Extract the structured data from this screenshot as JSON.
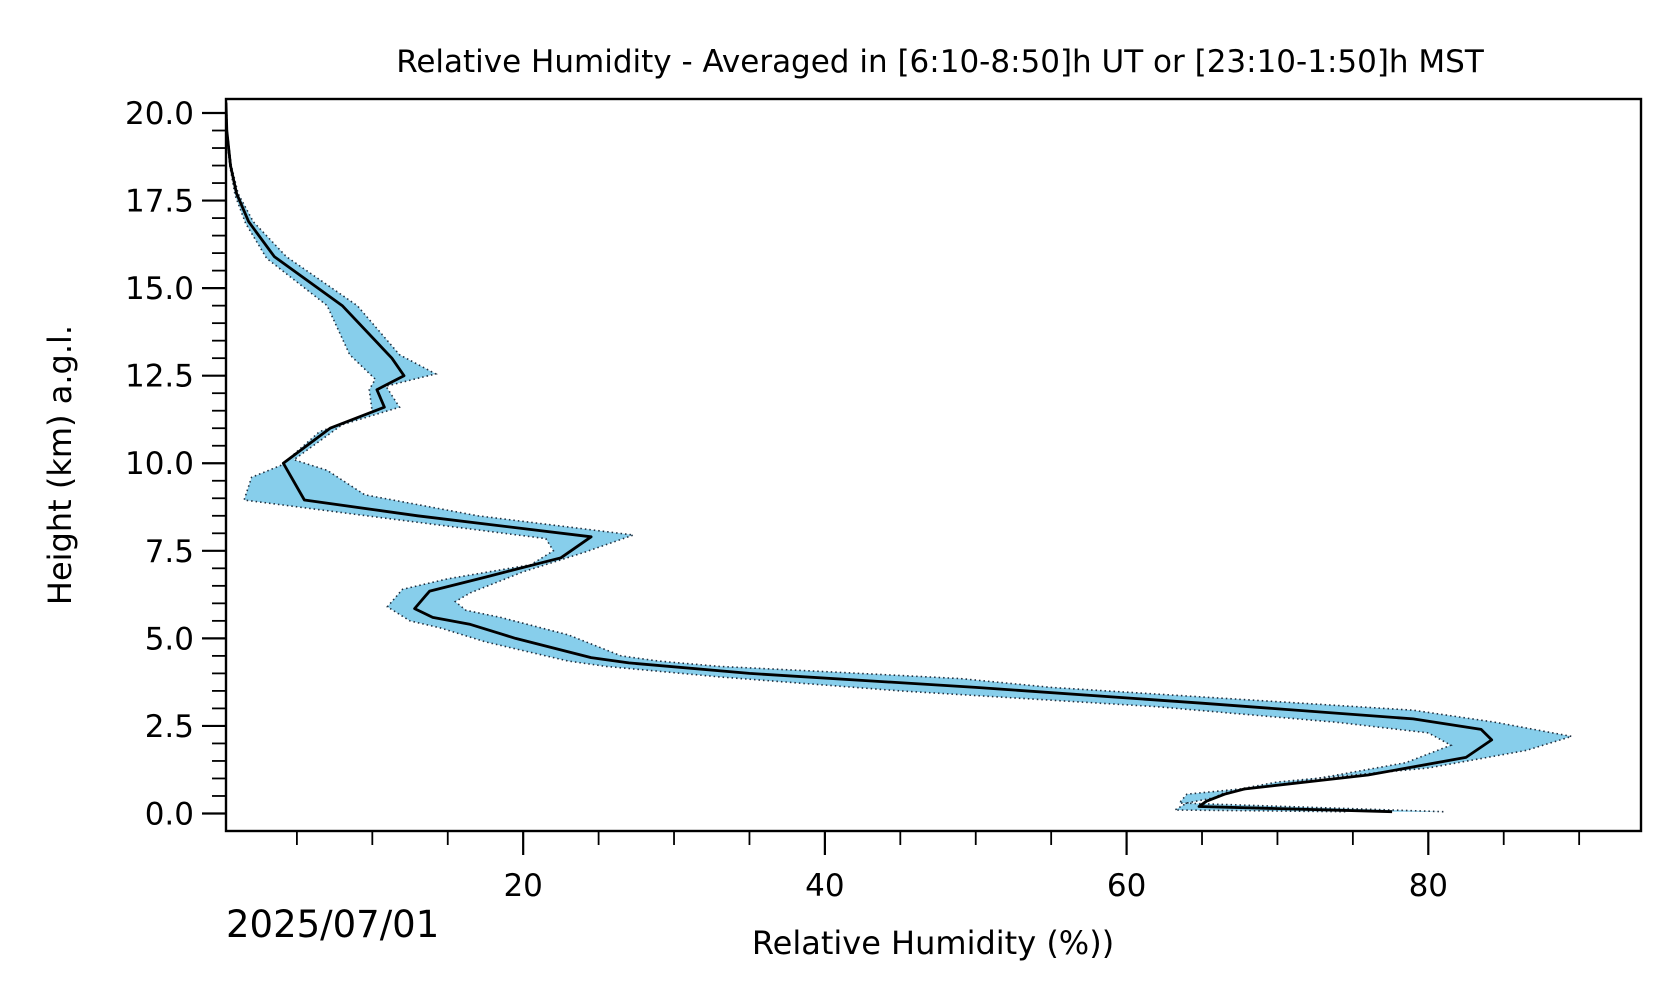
{
  "chart_data": {
    "type": "line",
    "title": "Relative Humidity - Averaged in [6:10-8:50]h UT or [23:10-1:50]h MST",
    "xlabel": "Relative Humidity (%))",
    "ylabel": "Height (km) a.g.l.",
    "date": "2025/07/01",
    "xlim": [
      0.3,
      94.1
    ],
    "ylim": [
      -0.5,
      20.4
    ],
    "x_major_ticks": [
      20,
      40,
      60,
      80
    ],
    "x_tick_labels": [
      "20",
      "40",
      "60",
      "80"
    ],
    "x_minor_ticks": [
      5,
      10,
      15,
      25,
      30,
      35,
      45,
      50,
      55,
      65,
      70,
      75,
      85,
      90
    ],
    "y_major_ticks": [
      0,
      2.5,
      5,
      7.5,
      10,
      12.5,
      15,
      17.5,
      20
    ],
    "y_tick_labels": [
      "0.0",
      "2.5",
      "5.0",
      "7.5",
      "10.0",
      "12.5",
      "15.0",
      "17.5",
      "20.0"
    ],
    "colors": {
      "band": "#87ceeb",
      "line": "#000000",
      "band_edge": "#1f2f3f"
    },
    "series": [
      {
        "role": "mean",
        "points": [
          [
            77.6,
            0.05
          ],
          [
            64.8,
            0.2
          ],
          [
            65.3,
            0.35
          ],
          [
            66.5,
            0.55
          ],
          [
            67.8,
            0.7
          ],
          [
            76.0,
            1.1
          ],
          [
            82.5,
            1.6
          ],
          [
            84.2,
            2.1
          ],
          [
            83.5,
            2.4
          ],
          [
            79.0,
            2.7
          ],
          [
            65.0,
            3.15
          ],
          [
            50.0,
            3.6
          ],
          [
            35.0,
            4.0
          ],
          [
            27.0,
            4.3
          ],
          [
            24.5,
            4.45
          ],
          [
            19.5,
            5.0
          ],
          [
            16.5,
            5.4
          ],
          [
            14.0,
            5.6
          ],
          [
            12.8,
            5.85
          ],
          [
            13.5,
            6.2
          ],
          [
            13.8,
            6.35
          ],
          [
            17.5,
            6.75
          ],
          [
            22.5,
            7.3
          ],
          [
            24.5,
            7.9
          ],
          [
            13.0,
            8.5
          ],
          [
            5.5,
            8.95
          ],
          [
            4.1,
            10.0
          ],
          [
            7.2,
            11.0
          ],
          [
            10.8,
            11.6
          ],
          [
            10.3,
            12.1
          ],
          [
            12.1,
            12.5
          ],
          [
            11.3,
            13.0
          ],
          [
            8.0,
            14.5
          ],
          [
            3.5,
            15.9
          ],
          [
            1.8,
            16.9
          ],
          [
            1.0,
            17.7
          ],
          [
            0.6,
            18.5
          ],
          [
            0.35,
            19.5
          ],
          [
            0.3,
            20.3
          ]
        ]
      },
      {
        "role": "upper",
        "points": [
          [
            81.0,
            0.05
          ],
          [
            63.5,
            0.3
          ],
          [
            64.0,
            0.55
          ],
          [
            67.5,
            0.7
          ],
          [
            70.0,
            0.9
          ],
          [
            80.0,
            1.3
          ],
          [
            86.5,
            1.8
          ],
          [
            89.5,
            2.2
          ],
          [
            84.5,
            2.6
          ],
          [
            79.0,
            2.95
          ],
          [
            66.0,
            3.3
          ],
          [
            55.0,
            3.6
          ],
          [
            49.0,
            3.85
          ],
          [
            40.0,
            4.05
          ],
          [
            33.0,
            4.2
          ],
          [
            29.0,
            4.35
          ],
          [
            26.5,
            4.5
          ],
          [
            23.0,
            5.1
          ],
          [
            18.5,
            5.6
          ],
          [
            16.2,
            5.8
          ],
          [
            15.5,
            6.05
          ],
          [
            16.5,
            6.3
          ],
          [
            20.0,
            6.9
          ],
          [
            24.0,
            7.45
          ],
          [
            27.3,
            7.95
          ],
          [
            17.0,
            8.5
          ],
          [
            9.5,
            9.1
          ],
          [
            7.0,
            9.8
          ],
          [
            4.8,
            10.1
          ],
          [
            8.0,
            11.1
          ],
          [
            11.8,
            11.6
          ],
          [
            10.9,
            12.2
          ],
          [
            14.2,
            12.55
          ],
          [
            11.8,
            13.1
          ],
          [
            9.0,
            14.5
          ],
          [
            4.3,
            15.9
          ],
          [
            2.1,
            16.9
          ],
          [
            1.1,
            17.7
          ],
          [
            0.65,
            18.5
          ],
          [
            0.38,
            19.5
          ],
          [
            0.33,
            20.3
          ]
        ]
      },
      {
        "role": "lower",
        "points": [
          [
            74.5,
            0.05
          ],
          [
            63.2,
            0.1
          ],
          [
            64.0,
            0.3
          ],
          [
            65.8,
            0.45
          ],
          [
            66.5,
            0.6
          ],
          [
            72.0,
            0.95
          ],
          [
            78.5,
            1.45
          ],
          [
            81.5,
            1.95
          ],
          [
            80.0,
            2.3
          ],
          [
            74.0,
            2.6
          ],
          [
            62.0,
            3.05
          ],
          [
            45.0,
            3.5
          ],
          [
            33.0,
            3.9
          ],
          [
            25.5,
            4.2
          ],
          [
            23.0,
            4.35
          ],
          [
            17.5,
            4.9
          ],
          [
            14.5,
            5.3
          ],
          [
            12.5,
            5.5
          ],
          [
            11.0,
            5.9
          ],
          [
            12.0,
            6.4
          ],
          [
            15.0,
            6.7
          ],
          [
            20.5,
            7.1
          ],
          [
            22.0,
            7.5
          ],
          [
            21.5,
            7.85
          ],
          [
            10.5,
            8.45
          ],
          [
            1.5,
            8.95
          ],
          [
            2.0,
            9.6
          ],
          [
            4.0,
            9.95
          ],
          [
            6.5,
            10.9
          ],
          [
            10.0,
            11.45
          ],
          [
            9.8,
            12.1
          ],
          [
            10.2,
            12.4
          ],
          [
            8.5,
            13.1
          ],
          [
            7.0,
            14.5
          ],
          [
            3.0,
            15.85
          ],
          [
            1.6,
            16.85
          ],
          [
            0.9,
            17.65
          ],
          [
            0.55,
            18.5
          ],
          [
            0.32,
            19.5
          ],
          [
            0.3,
            20.3
          ]
        ]
      }
    ]
  }
}
